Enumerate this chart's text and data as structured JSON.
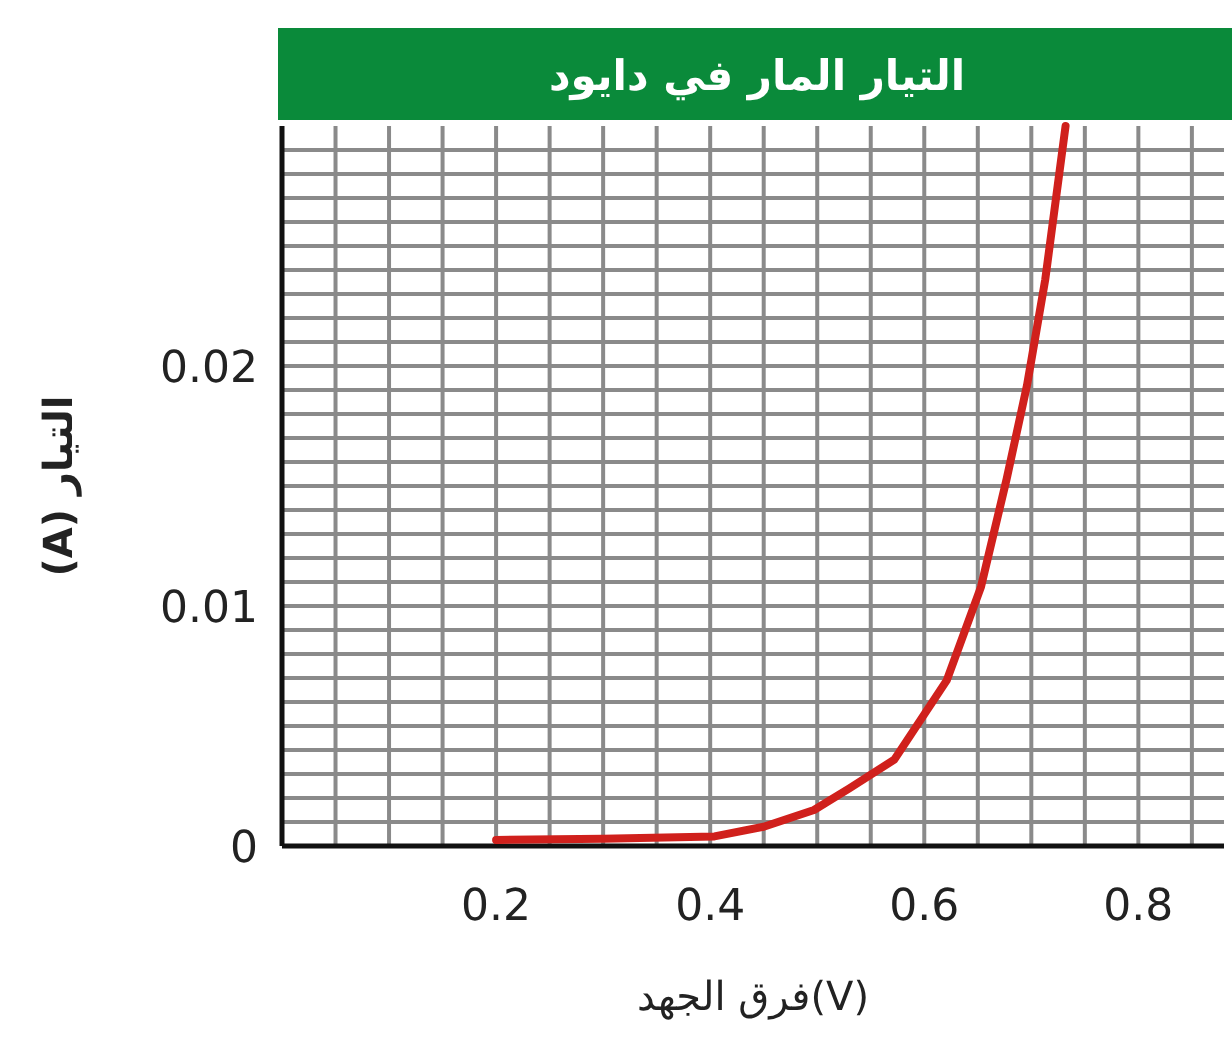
{
  "chart_data": {
    "type": "line",
    "title": "التيار المار في دايود",
    "xlabel": "فرق الجهد(V)",
    "ylabel": "التيار (A)",
    "series": [
      {
        "color": "#d0201c",
        "x": [
          0.2,
          0.3,
          0.404,
          0.45,
          0.497,
          0.53,
          0.572,
          0.621,
          0.653,
          0.677,
          0.696,
          0.713,
          0.732
        ],
        "values": [
          0.00025,
          0.0003,
          0.0004,
          0.0008,
          0.0015,
          0.0024,
          0.0036,
          0.0069,
          0.0108,
          0.0153,
          0.0192,
          0.0236,
          0.03
        ]
      }
    ],
    "xlim": [
      0,
      0.88
    ],
    "ylim": [
      0,
      0.03
    ],
    "xticks": [
      {
        "value": 0,
        "label": null
      },
      {
        "value": 0.05,
        "label": null
      },
      {
        "value": 0.1,
        "label": null
      },
      {
        "value": 0.15,
        "label": null
      },
      0.2,
      {
        "value": 0.25,
        "label": null
      },
      {
        "value": 0.3,
        "label": null
      },
      {
        "value": 0.35,
        "label": null
      },
      0.4,
      {
        "value": 0.45,
        "label": null
      },
      {
        "value": 0.5,
        "label": null
      },
      {
        "value": 0.55,
        "label": null
      },
      0.6,
      {
        "value": 0.65,
        "label": null
      },
      {
        "value": 0.7,
        "label": null
      },
      {
        "value": 0.75,
        "label": null
      },
      0.8,
      {
        "value": 0.85,
        "label": null
      }
    ],
    "yticks": [
      0,
      {
        "value": 0.001,
        "label": null
      },
      {
        "value": 0.002,
        "label": null
      },
      {
        "value": 0.003,
        "label": null
      },
      {
        "value": 0.004,
        "label": null
      },
      {
        "value": 0.005,
        "label": null
      },
      {
        "value": 0.006,
        "label": null
      },
      {
        "value": 0.007,
        "label": null
      },
      {
        "value": 0.008,
        "label": null
      },
      {
        "value": 0.009,
        "label": null
      },
      0.01,
      {
        "value": 0.011,
        "label": null
      },
      {
        "value": 0.012,
        "label": null
      },
      {
        "value": 0.013,
        "label": null
      },
      {
        "value": 0.014,
        "label": null
      },
      {
        "value": 0.015,
        "label": null
      },
      {
        "value": 0.016,
        "label": null
      },
      {
        "value": 0.017,
        "label": null
      },
      {
        "value": 0.018,
        "label": null
      },
      {
        "value": 0.019,
        "label": null
      },
      0.02,
      {
        "value": 0.021,
        "label": null
      },
      {
        "value": 0.022,
        "label": null
      },
      {
        "value": 0.023,
        "label": null
      },
      {
        "value": 0.024,
        "label": null
      },
      {
        "value": 0.025,
        "label": null
      },
      {
        "value": 0.026,
        "label": null
      },
      {
        "value": 0.027,
        "label": null
      },
      {
        "value": 0.028,
        "label": null
      },
      {
        "value": 0.029,
        "label": null
      }
    ],
    "grid": true,
    "line_style": "solid",
    "marker": "none"
  }
}
